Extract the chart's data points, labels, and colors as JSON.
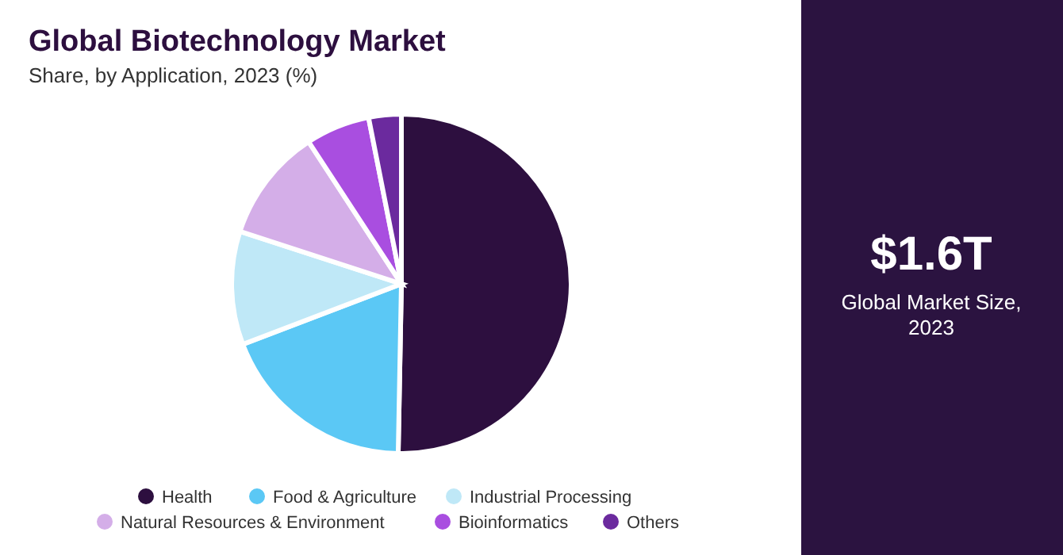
{
  "chart_data": [
    {
      "type": "pie",
      "title": "Global Biotechnology Market",
      "subtitle": "Share, by Application, 2023 (%)",
      "categories": [
        "Health",
        "Food & Agriculture",
        "Industrial Processing",
        "Natural Resources & Environment",
        "Bioinformatics",
        "Others"
      ],
      "values": [
        50.3,
        18.9,
        10.8,
        10.8,
        6.1,
        3.1
      ],
      "colors": [
        "#2d0f3f",
        "#5bc8f5",
        "#bfe8f7",
        "#d4aee8",
        "#a94ee0",
        "#6b2a9e"
      ],
      "legend": "bottom"
    },
    {
      "type": "other",
      "title": "$1.6T",
      "subtitle": "Global Market Size, 2023"
    }
  ]
}
